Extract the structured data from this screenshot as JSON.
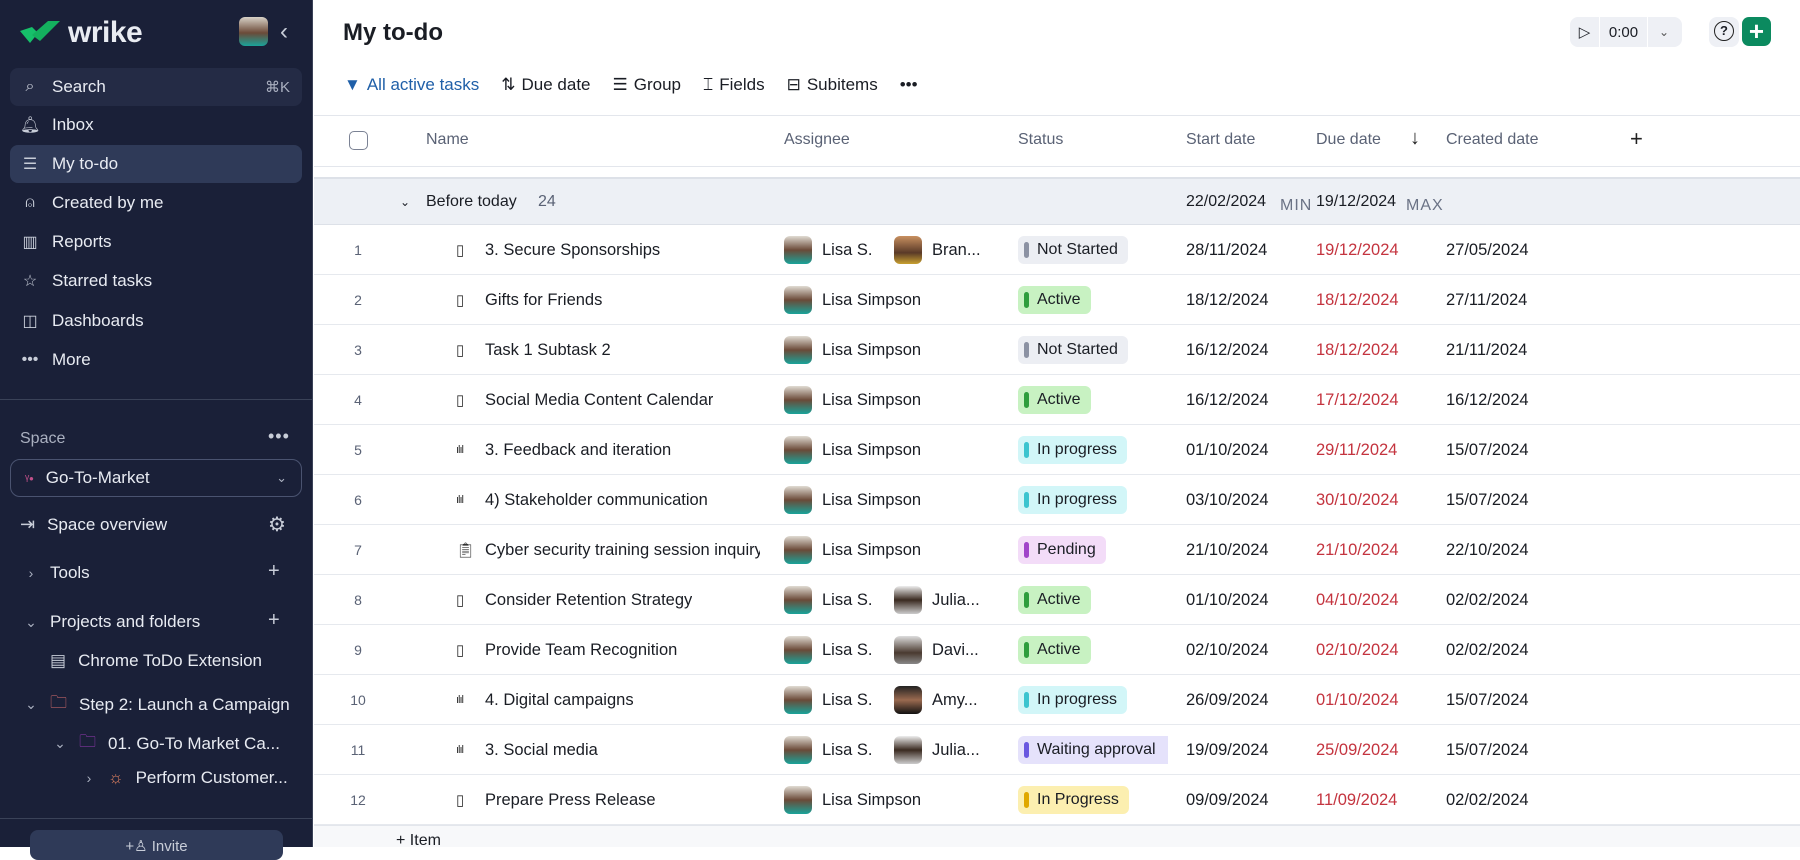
{
  "sidebar": {
    "logo": "wrike",
    "search": {
      "label": "Search",
      "shortcut": "⌘K"
    },
    "items": [
      {
        "label": "Inbox",
        "icon": "bell-icon"
      },
      {
        "label": "My to-do",
        "icon": "person-list-icon",
        "active": true
      },
      {
        "label": "Created by me",
        "icon": "person-arrow-icon"
      },
      {
        "label": "Reports",
        "icon": "report-icon"
      },
      {
        "label": "Starred tasks",
        "icon": "star-icon"
      },
      {
        "label": "Dashboards",
        "icon": "dashboard-icon"
      },
      {
        "label": "More",
        "icon": "more-icon"
      }
    ],
    "space_label": "Space",
    "space_name": "Go-To-Market",
    "space_overview": "Space overview",
    "tools": "Tools",
    "projects": "Projects and folders",
    "tree": [
      {
        "label": "Chrome ToDo Extension"
      },
      {
        "label": "Step 2: Launch a Campaign"
      },
      {
        "label": "01. Go-To Market Ca..."
      },
      {
        "label": "Perform Customer..."
      }
    ],
    "invite": "Invite"
  },
  "header": {
    "title": "My to-do",
    "timer": "0:00"
  },
  "toolbar": {
    "filter": "All active tasks",
    "sort": "Due date",
    "group": "Group",
    "fields": "Fields",
    "subitems": "Subitems",
    "more": "•••"
  },
  "columns": {
    "name": "Name",
    "assignee": "Assignee",
    "status": "Status",
    "start": "Start date",
    "due": "Due date",
    "created": "Created date"
  },
  "group": {
    "label": "Before today",
    "count": "24",
    "start_min": "22/02/2024",
    "min_label": "MIN",
    "due_max": "19/12/2024",
    "max_label": "MAX"
  },
  "status_colors": {
    "Not Started": [
      "#8c92a3",
      "#eceef3"
    ],
    "Active": [
      "#2f9e3d",
      "#c8f2c2"
    ],
    "In progress": [
      "#3cc4cf",
      "#d2f6f8"
    ],
    "Pending": [
      "#a144c9",
      "#f3dcf8"
    ],
    "Waiting approval": [
      "#6a58e0",
      "#e5e2fb"
    ],
    "In Progress": [
      "#e0a800",
      "#fcefb0"
    ]
  },
  "rows": [
    {
      "n": "1",
      "type": "task",
      "name": "3. Secure Sponsorships",
      "a1": "Lisa S.",
      "a2": "Bran...",
      "status": "Not Started",
      "start": "28/11/2024",
      "due": "19/12/2024",
      "created": "27/05/2024"
    },
    {
      "n": "2",
      "type": "task",
      "name": "Gifts for Friends",
      "a1": "Lisa Simpson",
      "a2": "",
      "status": "Active",
      "start": "18/12/2024",
      "due": "18/12/2024",
      "created": "27/11/2024"
    },
    {
      "n": "3",
      "type": "task",
      "name": "Task 1 Subtask 2",
      "a1": "Lisa Simpson",
      "a2": "",
      "status": "Not Started",
      "start": "16/12/2024",
      "due": "18/12/2024",
      "created": "21/11/2024"
    },
    {
      "n": "4",
      "type": "task",
      "name": "Social Media Content Calendar",
      "a1": "Lisa Simpson",
      "a2": "",
      "status": "Active",
      "start": "16/12/2024",
      "due": "17/12/2024",
      "created": "16/12/2024"
    },
    {
      "n": "5",
      "type": "phase",
      "name": "3. Feedback and iteration",
      "a1": "Lisa Simpson",
      "a2": "",
      "status": "In progress",
      "start": "01/10/2024",
      "due": "29/11/2024",
      "created": "15/07/2024"
    },
    {
      "n": "6",
      "type": "phase",
      "name": "4) Stakeholder communication",
      "a1": "Lisa Simpson",
      "a2": "",
      "status": "In progress",
      "start": "03/10/2024",
      "due": "30/10/2024",
      "created": "15/07/2024"
    },
    {
      "n": "7",
      "type": "request",
      "name": "Cyber security training session inquiry",
      "a1": "Lisa Simpson",
      "a2": "",
      "status": "Pending",
      "start": "21/10/2024",
      "due": "21/10/2024",
      "created": "22/10/2024"
    },
    {
      "n": "8",
      "type": "task",
      "name": "Consider Retention Strategy",
      "a1": "Lisa S.",
      "a2": "Julia...",
      "status": "Active",
      "start": "01/10/2024",
      "due": "04/10/2024",
      "created": "02/02/2024"
    },
    {
      "n": "9",
      "type": "task",
      "name": "Provide Team Recognition",
      "a1": "Lisa S.",
      "a2": "Davi...",
      "status": "Active",
      "start": "02/10/2024",
      "due": "02/10/2024",
      "created": "02/02/2024"
    },
    {
      "n": "10",
      "type": "phase",
      "name": "4. Digital campaigns",
      "a1": "Lisa S.",
      "a2": "Amy...",
      "status": "In progress",
      "start": "26/09/2024",
      "due": "01/10/2024",
      "created": "15/07/2024"
    },
    {
      "n": "11",
      "type": "phase",
      "name": "3. Social media",
      "a1": "Lisa S.",
      "a2": "Julia...",
      "status": "Waiting approval",
      "start": "19/09/2024",
      "due": "25/09/2024",
      "created": "15/07/2024"
    },
    {
      "n": "12",
      "type": "task",
      "name": "Prepare Press Release",
      "a1": "Lisa Simpson",
      "a2": "",
      "status": "In Progress",
      "start": "09/09/2024",
      "due": "11/09/2024",
      "created": "02/02/2024"
    }
  ],
  "footer": {
    "add_item": "Item"
  }
}
